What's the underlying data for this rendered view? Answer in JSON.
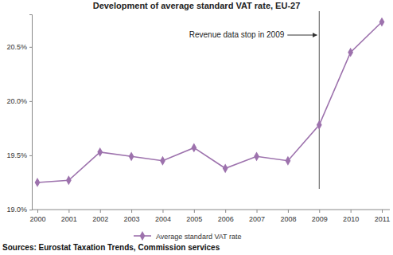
{
  "chart_data": {
    "type": "line",
    "title": "Development of average standard VAT rate, EU-27",
    "categories": [
      "2000",
      "2001",
      "2002",
      "2003",
      "2004",
      "2005",
      "2006",
      "2007",
      "2008",
      "2009",
      "2010",
      "2011"
    ],
    "series": [
      {
        "name": "Average standard VAT rate",
        "color": "#9d72ad",
        "marker": "diamond",
        "values": [
          19.25,
          19.27,
          19.53,
          19.49,
          19.45,
          19.57,
          19.38,
          19.49,
          19.45,
          19.78,
          20.45,
          20.73
        ]
      }
    ],
    "ylim": [
      19.0,
      20.8
    ],
    "yticks": [
      {
        "value": 19.0,
        "label": "19.0%"
      },
      {
        "value": 19.5,
        "label": "19.5%"
      },
      {
        "value": 20.0,
        "label": "20.0%"
      },
      {
        "value": 20.5,
        "label": "20.5%"
      }
    ],
    "grid": false,
    "legend": "bottom",
    "annotation": {
      "text": "Revenue data stop in 2009",
      "x": "2009"
    },
    "source": "Sources: Eurostat Taxation Trends, Commission services"
  }
}
